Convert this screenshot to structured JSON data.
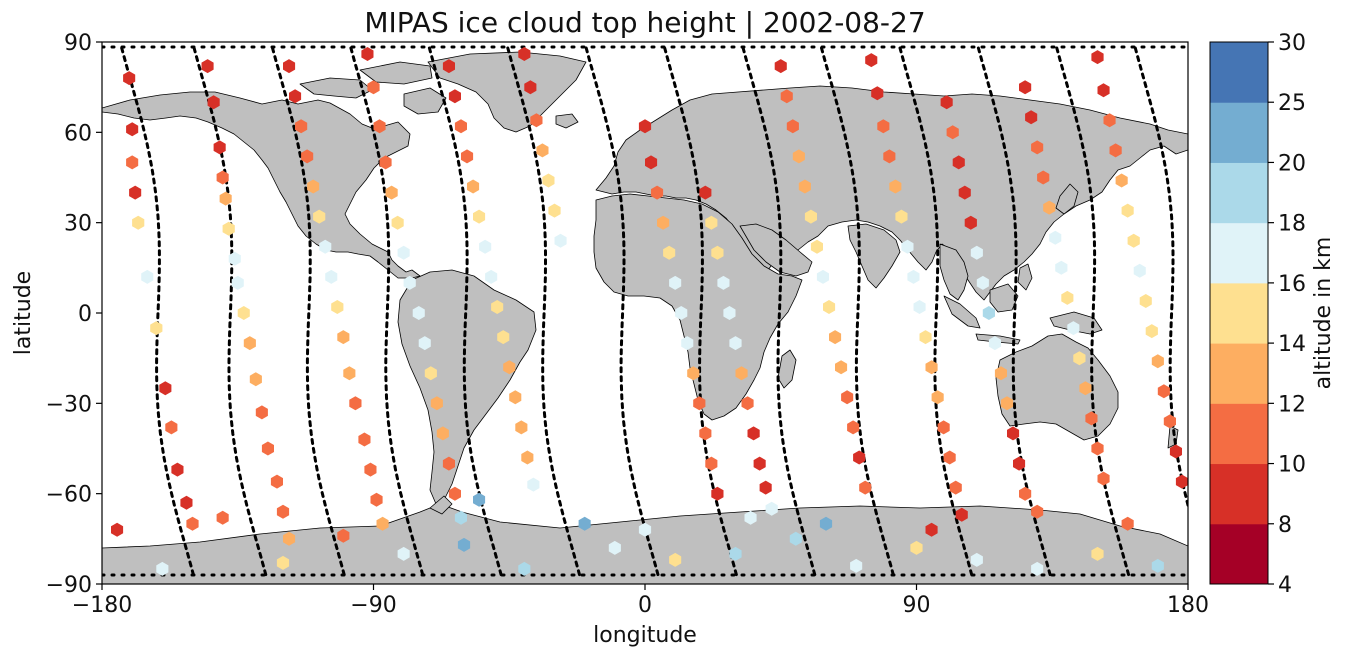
{
  "chart_data": {
    "type": "scatter",
    "title": "MIPAS ice cloud top height | 2002-08-27",
    "xlabel": "longitude",
    "ylabel": "latitude",
    "xlim": [
      -180,
      180
    ],
    "ylim": [
      -90,
      90
    ],
    "x_ticks": [
      "−180",
      "−90",
      "0",
      "90",
      "180"
    ],
    "y_ticks": [
      "90",
      "60",
      "30",
      "0",
      "−30",
      "−60",
      "−90"
    ],
    "grid": false,
    "colorbar": {
      "label": "altitude in km",
      "ticks": [
        "4",
        "8",
        "10",
        "12",
        "14",
        "16",
        "18",
        "20",
        "25",
        "30"
      ],
      "colors": [
        "#a50026",
        "#d73027",
        "#f46d43",
        "#fdae61",
        "#fee090",
        "#ffffbf",
        "#e0f3f8",
        "#abd9e9",
        "#74add1",
        "#4575b4",
        "#313695"
      ],
      "bins": [
        [
          4,
          8
        ],
        [
          8,
          10
        ],
        [
          10,
          12
        ],
        [
          12,
          14
        ],
        [
          14,
          16
        ],
        [
          16,
          18
        ],
        [
          18,
          20
        ],
        [
          20,
          25
        ],
        [
          25,
          30
        ]
      ]
    },
    "series": [
      {
        "name": "",
        "points": [
          [
            -171,
            78,
            8
          ],
          [
            -170,
            61,
            9
          ],
          [
            -170,
            50,
            11
          ],
          [
            -169,
            40,
            9
          ],
          [
            -168,
            30,
            15
          ],
          [
            -165,
            12,
            16
          ],
          [
            -162,
            -5,
            14
          ],
          [
            -159,
            -25,
            8
          ],
          [
            -157,
            -38,
            11
          ],
          [
            -155,
            -52,
            9
          ],
          [
            -152,
            -63,
            8
          ],
          [
            -150,
            -70,
            10
          ],
          [
            -145,
            82,
            9
          ],
          [
            -143,
            70,
            9
          ],
          [
            -141,
            55,
            9
          ],
          [
            -140,
            45,
            11
          ],
          [
            -139,
            38,
            12
          ],
          [
            -138,
            28,
            15
          ],
          [
            -136,
            18,
            16
          ],
          [
            -135,
            10,
            16
          ],
          [
            -133,
            0,
            14
          ],
          [
            -131,
            -10,
            13
          ],
          [
            -129,
            -22,
            12
          ],
          [
            -127,
            -33,
            11
          ],
          [
            -125,
            -45,
            10
          ],
          [
            -122,
            -56,
            10
          ],
          [
            -120,
            -66,
            11
          ],
          [
            -118,
            -75,
            12
          ],
          [
            -118,
            82,
            9
          ],
          [
            -116,
            72,
            9
          ],
          [
            -114,
            62,
            10
          ],
          [
            -112,
            52,
            11
          ],
          [
            -110,
            42,
            12
          ],
          [
            -108,
            32,
            14
          ],
          [
            -106,
            22,
            16
          ],
          [
            -104,
            12,
            16
          ],
          [
            -102,
            2,
            15
          ],
          [
            -100,
            -8,
            13
          ],
          [
            -98,
            -20,
            12
          ],
          [
            -96,
            -30,
            11
          ],
          [
            -93,
            -42,
            11
          ],
          [
            -91,
            -52,
            10
          ],
          [
            -89,
            -62,
            11
          ],
          [
            -87,
            -70,
            13
          ],
          [
            -92,
            86,
            9
          ],
          [
            -90,
            75,
            10
          ],
          [
            -88,
            62,
            11
          ],
          [
            -86,
            50,
            11
          ],
          [
            -84,
            40,
            13
          ],
          [
            -82,
            30,
            15
          ],
          [
            -80,
            20,
            16
          ],
          [
            -78,
            10,
            17
          ],
          [
            -75,
            0,
            16
          ],
          [
            -73,
            -10,
            16
          ],
          [
            -71,
            -20,
            15
          ],
          [
            -69,
            -30,
            13
          ],
          [
            -67,
            -40,
            12
          ],
          [
            -65,
            -50,
            11
          ],
          [
            -63,
            -60,
            10
          ],
          [
            -61,
            -68,
            19
          ],
          [
            -65,
            82,
            9
          ],
          [
            -63,
            72,
            9
          ],
          [
            -61,
            62,
            10
          ],
          [
            -59,
            52,
            11
          ],
          [
            -57,
            42,
            13
          ],
          [
            -55,
            32,
            15
          ],
          [
            -53,
            22,
            16
          ],
          [
            -51,
            12,
            16
          ],
          [
            -49,
            2,
            15
          ],
          [
            -47,
            -8,
            14
          ],
          [
            -45,
            -18,
            13
          ],
          [
            -43,
            -28,
            12
          ],
          [
            -41,
            -38,
            12
          ],
          [
            -39,
            -48,
            13
          ],
          [
            -37,
            -57,
            16
          ],
          [
            -40,
            86,
            8
          ],
          [
            -38,
            75,
            9
          ],
          [
            -36,
            64,
            10
          ],
          [
            -34,
            54,
            13
          ],
          [
            -32,
            44,
            14
          ],
          [
            -30,
            34,
            15
          ],
          [
            -28,
            24,
            16
          ],
          [
            20,
            40,
            9
          ],
          [
            22,
            30,
            14
          ],
          [
            24,
            20,
            15
          ],
          [
            26,
            10,
            16
          ],
          [
            28,
            0,
            17
          ],
          [
            30,
            -10,
            16
          ],
          [
            32,
            -20,
            12
          ],
          [
            34,
            -30,
            10
          ],
          [
            36,
            -40,
            9
          ],
          [
            38,
            -50,
            9
          ],
          [
            40,
            -58,
            8
          ],
          [
            42,
            -65,
            16
          ],
          [
            45,
            82,
            9
          ],
          [
            47,
            72,
            10
          ],
          [
            49,
            62,
            11
          ],
          [
            51,
            52,
            12
          ],
          [
            53,
            42,
            13
          ],
          [
            55,
            32,
            14
          ],
          [
            57,
            22,
            15
          ],
          [
            59,
            12,
            16
          ],
          [
            61,
            2,
            15
          ],
          [
            63,
            -8,
            13
          ],
          [
            65,
            -18,
            12
          ],
          [
            67,
            -28,
            11
          ],
          [
            69,
            -38,
            10
          ],
          [
            71,
            -48,
            9
          ],
          [
            73,
            -58,
            10
          ],
          [
            75,
            84,
            9
          ],
          [
            77,
            73,
            9
          ],
          [
            79,
            62,
            10
          ],
          [
            81,
            52,
            10
          ],
          [
            83,
            42,
            12
          ],
          [
            85,
            32,
            14
          ],
          [
            87,
            22,
            16
          ],
          [
            89,
            12,
            16
          ],
          [
            91,
            2,
            16
          ],
          [
            93,
            -8,
            15
          ],
          [
            95,
            -18,
            13
          ],
          [
            97,
            -28,
            12
          ],
          [
            99,
            -38,
            11
          ],
          [
            101,
            -48,
            10
          ],
          [
            103,
            -58,
            10
          ],
          [
            105,
            -67,
            8
          ],
          [
            100,
            70,
            9
          ],
          [
            102,
            60,
            10
          ],
          [
            104,
            50,
            9
          ],
          [
            106,
            40,
            9
          ],
          [
            108,
            30,
            8
          ],
          [
            110,
            20,
            16
          ],
          [
            112,
            10,
            17
          ],
          [
            114,
            0,
            18
          ],
          [
            116,
            -10,
            17
          ],
          [
            118,
            -20,
            13
          ],
          [
            120,
            -30,
            12
          ],
          [
            122,
            -40,
            9
          ],
          [
            124,
            -50,
            9
          ],
          [
            126,
            -60,
            10
          ],
          [
            126,
            75,
            9
          ],
          [
            128,
            65,
            9
          ],
          [
            130,
            55,
            10
          ],
          [
            132,
            45,
            11
          ],
          [
            134,
            35,
            13
          ],
          [
            136,
            25,
            16
          ],
          [
            138,
            15,
            16
          ],
          [
            140,
            5,
            15
          ],
          [
            142,
            -5,
            16
          ],
          [
            144,
            -15,
            14
          ],
          [
            146,
            -25,
            13
          ],
          [
            148,
            -35,
            11
          ],
          [
            150,
            -45,
            10
          ],
          [
            152,
            -55,
            11
          ],
          [
            150,
            85,
            9
          ],
          [
            152,
            74,
            9
          ],
          [
            154,
            64,
            10
          ],
          [
            156,
            54,
            11
          ],
          [
            158,
            44,
            13
          ],
          [
            160,
            34,
            14
          ],
          [
            162,
            24,
            15
          ],
          [
            164,
            14,
            16
          ],
          [
            166,
            4,
            15
          ],
          [
            168,
            -6,
            14
          ],
          [
            170,
            -16,
            13
          ],
          [
            172,
            -26,
            11
          ],
          [
            174,
            -36,
            10
          ],
          [
            176,
            -46,
            9
          ],
          [
            178,
            -56,
            8
          ],
          [
            0,
            62,
            9
          ],
          [
            2,
            50,
            9
          ],
          [
            4,
            40,
            10
          ],
          [
            6,
            30,
            12
          ],
          [
            8,
            20,
            15
          ],
          [
            10,
            10,
            16
          ],
          [
            12,
            0,
            17
          ],
          [
            14,
            -10,
            16
          ],
          [
            16,
            -20,
            12
          ],
          [
            18,
            -30,
            11
          ],
          [
            20,
            -40,
            10
          ],
          [
            22,
            -50,
            10
          ],
          [
            24,
            -60,
            9
          ],
          [
            -160,
            -85,
            17
          ],
          [
            -120,
            -83,
            15
          ],
          [
            -80,
            -80,
            16
          ],
          [
            -60,
            -77,
            21
          ],
          [
            -40,
            -85,
            18
          ],
          [
            -10,
            -78,
            17
          ],
          [
            10,
            -82,
            15
          ],
          [
            30,
            -80,
            18
          ],
          [
            50,
            -75,
            19
          ],
          [
            70,
            -84,
            16
          ],
          [
            90,
            -78,
            15
          ],
          [
            110,
            -82,
            16
          ],
          [
            130,
            -85,
            17
          ],
          [
            150,
            -80,
            14
          ],
          [
            170,
            -84,
            18
          ],
          [
            -175,
            -72,
            9
          ],
          [
            -140,
            -68,
            10
          ],
          [
            -100,
            -74,
            11
          ],
          [
            -55,
            -62,
            21
          ],
          [
            -20,
            -70,
            20
          ],
          [
            0,
            -72,
            17
          ],
          [
            35,
            -68,
            16
          ],
          [
            60,
            -70,
            22
          ],
          [
            95,
            -72,
            9
          ],
          [
            130,
            -66,
            10
          ],
          [
            160,
            -70,
            11
          ]
        ]
      }
    ]
  }
}
